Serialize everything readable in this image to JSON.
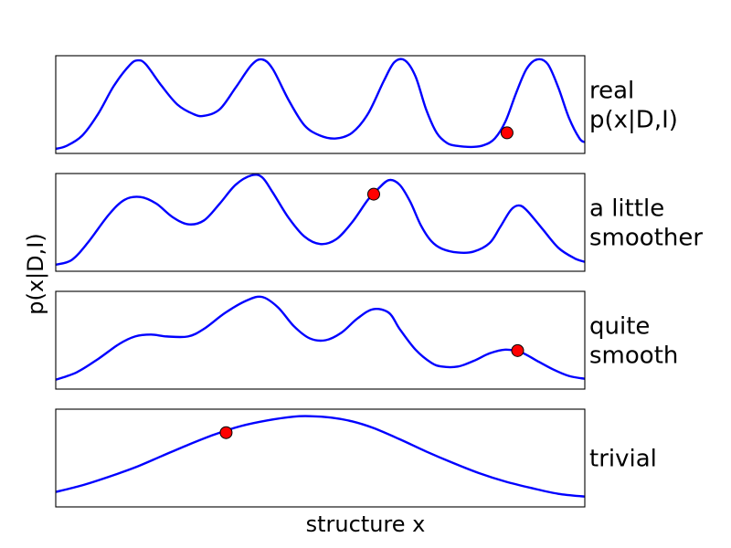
{
  "figure": {
    "ylabel": "p(x|D,I)",
    "xlabel": "structure x"
  },
  "colors": {
    "curve": "#0000ff",
    "marker_fill": "#ff0000",
    "marker_edge": "#000000",
    "frame": "#000000"
  },
  "chart_data": [
    {
      "type": "line",
      "label_lines": [
        "real",
        "p(x|D,I)"
      ],
      "xlim": [
        0,
        1
      ],
      "ylim": [
        0,
        1
      ],
      "ticks": "none",
      "points": [
        [
          0.0,
          0.03
        ],
        [
          0.02,
          0.06
        ],
        [
          0.05,
          0.17
        ],
        [
          0.08,
          0.4
        ],
        [
          0.11,
          0.7
        ],
        [
          0.14,
          0.92
        ],
        [
          0.155,
          0.97
        ],
        [
          0.17,
          0.93
        ],
        [
          0.2,
          0.7
        ],
        [
          0.23,
          0.5
        ],
        [
          0.26,
          0.4
        ],
        [
          0.28,
          0.38
        ],
        [
          0.31,
          0.45
        ],
        [
          0.34,
          0.68
        ],
        [
          0.37,
          0.92
        ],
        [
          0.39,
          0.98
        ],
        [
          0.41,
          0.88
        ],
        [
          0.44,
          0.55
        ],
        [
          0.47,
          0.28
        ],
        [
          0.5,
          0.17
        ],
        [
          0.53,
          0.14
        ],
        [
          0.56,
          0.2
        ],
        [
          0.59,
          0.4
        ],
        [
          0.62,
          0.75
        ],
        [
          0.64,
          0.95
        ],
        [
          0.66,
          0.97
        ],
        [
          0.68,
          0.8
        ],
        [
          0.7,
          0.45
        ],
        [
          0.72,
          0.2
        ],
        [
          0.74,
          0.09
        ],
        [
          0.76,
          0.06
        ],
        [
          0.79,
          0.05
        ],
        [
          0.81,
          0.07
        ],
        [
          0.83,
          0.14
        ],
        [
          0.85,
          0.32
        ],
        [
          0.87,
          0.62
        ],
        [
          0.89,
          0.88
        ],
        [
          0.91,
          0.98
        ],
        [
          0.93,
          0.93
        ],
        [
          0.95,
          0.68
        ],
        [
          0.97,
          0.36
        ],
        [
          0.99,
          0.14
        ],
        [
          1.0,
          0.1
        ]
      ],
      "marker": {
        "x": 0.853,
        "y": 0.2
      }
    },
    {
      "type": "line",
      "label_lines": [
        "a little",
        "smoother"
      ],
      "xlim": [
        0,
        1
      ],
      "ylim": [
        0,
        1
      ],
      "ticks": "none",
      "points": [
        [
          0.0,
          0.05
        ],
        [
          0.03,
          0.1
        ],
        [
          0.06,
          0.28
        ],
        [
          0.1,
          0.58
        ],
        [
          0.13,
          0.74
        ],
        [
          0.16,
          0.77
        ],
        [
          0.19,
          0.7
        ],
        [
          0.22,
          0.56
        ],
        [
          0.25,
          0.48
        ],
        [
          0.28,
          0.52
        ],
        [
          0.31,
          0.7
        ],
        [
          0.34,
          0.9
        ],
        [
          0.37,
          1.0
        ],
        [
          0.39,
          0.98
        ],
        [
          0.41,
          0.82
        ],
        [
          0.44,
          0.55
        ],
        [
          0.47,
          0.35
        ],
        [
          0.5,
          0.27
        ],
        [
          0.53,
          0.32
        ],
        [
          0.56,
          0.5
        ],
        [
          0.59,
          0.74
        ],
        [
          0.61,
          0.86
        ],
        [
          0.63,
          0.95
        ],
        [
          0.65,
          0.9
        ],
        [
          0.67,
          0.72
        ],
        [
          0.69,
          0.47
        ],
        [
          0.71,
          0.3
        ],
        [
          0.73,
          0.22
        ],
        [
          0.76,
          0.18
        ],
        [
          0.79,
          0.19
        ],
        [
          0.82,
          0.28
        ],
        [
          0.84,
          0.45
        ],
        [
          0.86,
          0.63
        ],
        [
          0.875,
          0.68
        ],
        [
          0.89,
          0.63
        ],
        [
          0.92,
          0.43
        ],
        [
          0.95,
          0.23
        ],
        [
          0.98,
          0.12
        ],
        [
          1.0,
          0.08
        ]
      ],
      "marker": {
        "x": 0.601,
        "y": 0.8
      }
    },
    {
      "type": "line",
      "label_lines": [
        "quite",
        "smooth"
      ],
      "xlim": [
        0,
        1
      ],
      "ylim": [
        0,
        1
      ],
      "ticks": "none",
      "points": [
        [
          0.0,
          0.08
        ],
        [
          0.04,
          0.16
        ],
        [
          0.08,
          0.3
        ],
        [
          0.12,
          0.46
        ],
        [
          0.15,
          0.54
        ],
        [
          0.18,
          0.56
        ],
        [
          0.21,
          0.54
        ],
        [
          0.25,
          0.54
        ],
        [
          0.28,
          0.62
        ],
        [
          0.32,
          0.79
        ],
        [
          0.36,
          0.92
        ],
        [
          0.39,
          0.96
        ],
        [
          0.42,
          0.85
        ],
        [
          0.45,
          0.65
        ],
        [
          0.48,
          0.52
        ],
        [
          0.51,
          0.5
        ],
        [
          0.54,
          0.58
        ],
        [
          0.57,
          0.73
        ],
        [
          0.6,
          0.83
        ],
        [
          0.63,
          0.79
        ],
        [
          0.65,
          0.62
        ],
        [
          0.68,
          0.4
        ],
        [
          0.71,
          0.26
        ],
        [
          0.73,
          0.22
        ],
        [
          0.76,
          0.22
        ],
        [
          0.79,
          0.28
        ],
        [
          0.82,
          0.36
        ],
        [
          0.85,
          0.4
        ],
        [
          0.88,
          0.37
        ],
        [
          0.91,
          0.28
        ],
        [
          0.94,
          0.19
        ],
        [
          0.97,
          0.12
        ],
        [
          1.0,
          0.09
        ]
      ],
      "marker": {
        "x": 0.873,
        "y": 0.39
      }
    },
    {
      "type": "line",
      "label_lines": [
        "trivial"
      ],
      "xlim": [
        0,
        1
      ],
      "ylim": [
        0,
        1
      ],
      "ticks": "none",
      "points": [
        [
          0.0,
          0.14
        ],
        [
          0.05,
          0.21
        ],
        [
          0.1,
          0.3
        ],
        [
          0.15,
          0.4
        ],
        [
          0.2,
          0.52
        ],
        [
          0.25,
          0.64
        ],
        [
          0.3,
          0.75
        ],
        [
          0.35,
          0.84
        ],
        [
          0.4,
          0.9
        ],
        [
          0.45,
          0.94
        ],
        [
          0.48,
          0.945
        ],
        [
          0.52,
          0.93
        ],
        [
          0.56,
          0.89
        ],
        [
          0.6,
          0.82
        ],
        [
          0.65,
          0.7
        ],
        [
          0.7,
          0.57
        ],
        [
          0.75,
          0.45
        ],
        [
          0.8,
          0.34
        ],
        [
          0.85,
          0.25
        ],
        [
          0.9,
          0.18
        ],
        [
          0.95,
          0.12
        ],
        [
          1.0,
          0.09
        ]
      ],
      "marker": {
        "x": 0.322,
        "y": 0.77
      }
    }
  ]
}
